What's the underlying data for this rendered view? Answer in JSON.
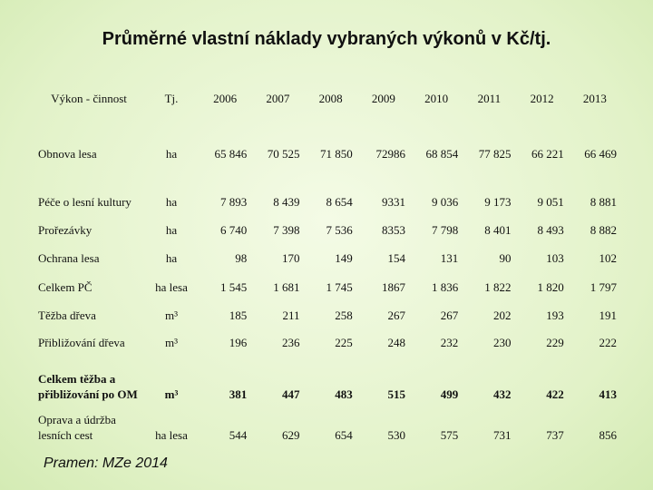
{
  "title": "Průměrné vlastní náklady vybraných výkonů v Kč/tj.",
  "table": {
    "header": [
      "Výkon - činnost",
      "Tj.",
      "2006",
      "2007",
      "2008",
      "2009",
      "2010",
      "2011",
      "2012",
      "2013"
    ],
    "rows": [
      [
        "Obnova lesa",
        "ha",
        "65 846",
        "70 525",
        "71 850",
        "72986",
        "68 854",
        "77 825",
        "66 221",
        "66 469"
      ],
      [
        "Péče o lesní kultury",
        "ha",
        "7 893",
        "8 439",
        "8 654",
        "9331",
        "9 036",
        "9 173",
        "9 051",
        "8 881"
      ],
      [
        "Prořezávky",
        "ha",
        "6 740",
        "7 398",
        "7 536",
        "8353",
        "7 798",
        "8 401",
        "8 493",
        "8 882"
      ],
      [
        "Ochrana lesa",
        "ha",
        "98",
        "170",
        "149",
        "154",
        "131",
        "90",
        "103",
        "102"
      ],
      [
        "Celkem PČ",
        "ha lesa",
        "1 545",
        "1 681",
        "1 745",
        "1867",
        "1 836",
        "1 822",
        "1 820",
        "1 797"
      ],
      [
        "Těžba dřeva",
        "m³",
        "185",
        "211",
        "258",
        "267",
        "267",
        "202",
        "193",
        "191"
      ],
      [
        "Přibližování dřeva",
        "m³",
        "196",
        "236",
        "225",
        "248",
        "232",
        "230",
        "229",
        "222"
      ],
      [
        "Celkem těžba a přibližování po OM",
        "m³",
        "381",
        "447",
        "483",
        "515",
        "499",
        "432",
        "422",
        "413"
      ],
      [
        "Oprava a údržba lesních cest",
        "ha lesa",
        "544",
        "629",
        "654",
        "530",
        "575",
        "731",
        "737",
        "856"
      ]
    ],
    "bold_rows": [
      7
    ]
  },
  "source": "Pramen: MZe 2014"
}
